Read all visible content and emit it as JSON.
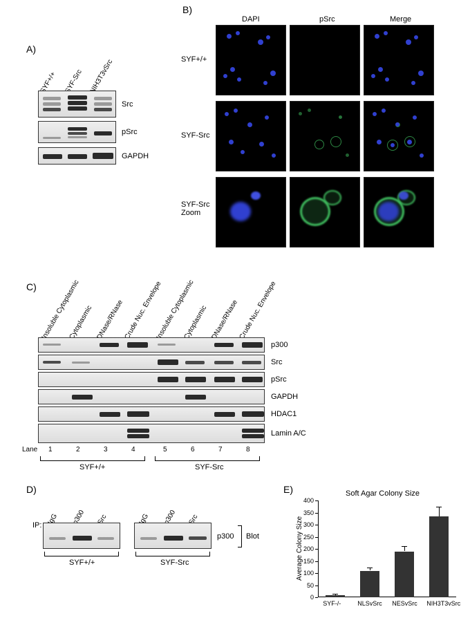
{
  "panelA": {
    "label": "A)",
    "lane_labels": [
      "SYF+/+",
      "SYF-Src",
      "NIH3T3vSrc"
    ],
    "row_labels": [
      "Src",
      "pSrc",
      "GAPDH"
    ]
  },
  "panelB": {
    "label": "B)",
    "col_headers": [
      "DAPI",
      "pSrc",
      "Merge"
    ],
    "row_headers": [
      "SYF+/+",
      "SYF-Src",
      "SYF-Src\nZoom"
    ],
    "dapi_color": "#3040d0",
    "psrc_color": "#40c060",
    "bg_color": "#000000"
  },
  "panelC": {
    "label": "C)",
    "fraction_labels": [
      "Insoluble Cytoplasmic",
      "Cytoplasmic",
      "DNase/RNase",
      "Crude Nuc. Envelope",
      "Insoluble Cytoplasmic",
      "Cytoplasmic",
      "DNase/RNase",
      "Crude Nuc. Envelope"
    ],
    "row_labels": [
      "p300",
      "Src",
      "pSrc",
      "GAPDH",
      "HDAC1",
      "Lamin A/C"
    ],
    "lane_label": "Lane",
    "lane_nums": [
      "1",
      "2",
      "3",
      "4",
      "5",
      "6",
      "7",
      "8"
    ],
    "group_labels": [
      "SYF+/+",
      "SYF-Src"
    ]
  },
  "panelD": {
    "label": "D)",
    "ip_label": "IP:",
    "ip_labels": [
      "IgG",
      "p300",
      "Src",
      "IgG",
      "p300",
      "Src"
    ],
    "row_label": "p300",
    "blot_label": "Blot",
    "group_labels": [
      "SYF+/+",
      "SYF-Src"
    ]
  },
  "panelE": {
    "label": "E)",
    "title": "Soft Agar Colony Size",
    "y_label": "Average Colony Size",
    "y_ticks": [
      0,
      50,
      100,
      150,
      200,
      250,
      300,
      350,
      400
    ],
    "ylim": [
      0,
      400
    ],
    "categories": [
      "SYF-/-",
      "NLSvSrc",
      "NESvSrc",
      "NIH3T3vSrc"
    ],
    "values": [
      10,
      110,
      190,
      335
    ],
    "errors": [
      5,
      12,
      22,
      40
    ],
    "bar_color": "#333333",
    "chart_bg": "#ffffff"
  }
}
